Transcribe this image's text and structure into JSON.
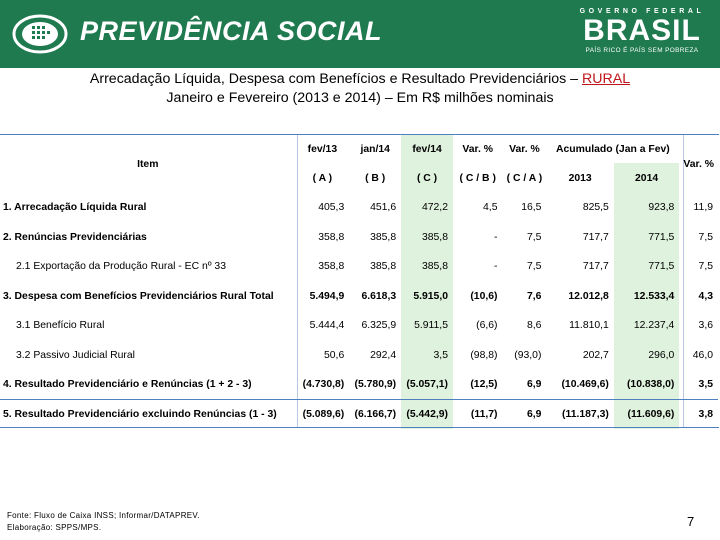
{
  "header": {
    "brand": "PREVIDÊNCIA SOCIAL",
    "gov_title": "GOVERNO FEDERAL",
    "gov_name": "BRASIL",
    "gov_slogan": "PAÍS RICO É PAÍS SEM POBREZA",
    "colors": {
      "band": "#1f7a4f",
      "accent_green": "#dff2dd",
      "rule_blue": "#4e7fbf"
    }
  },
  "title": {
    "line1_prefix": "Arrecadação Líquida, Despesa com Benefícios e Resultado Previdenciários –",
    "line1_highlight": "RURAL",
    "line2": "Janeiro e Fevereiro (2013 e 2014) – Em R$ milhões nominais"
  },
  "table": {
    "header_row1": {
      "item": "Item",
      "c1": "fev/13",
      "c2": "jan/14",
      "c3": "fev/14",
      "c4": "Var. %",
      "c5": "Var. %",
      "acum": "Acumulado (Jan a Fev)",
      "c8": "Var. %"
    },
    "header_row2": {
      "c1": "( A )",
      "c2": "( B )",
      "c3": "( C )",
      "c4": "( C / B )",
      "c5": "( C / A )",
      "c6": "2013",
      "c7": "2014"
    },
    "rows": [
      {
        "label": "1. Arrecadação Líquida Rural",
        "sub": false,
        "bold": false,
        "values": [
          "405,3",
          "451,6",
          "472,2",
          "4,5",
          "16,5",
          "825,5",
          "923,8",
          "11,9"
        ]
      },
      {
        "label": "2. Renúncias Previdenciárias",
        "sub": false,
        "bold": false,
        "values": [
          "358,8",
          "385,8",
          "385,8",
          "-",
          "7,5",
          "717,7",
          "771,5",
          "7,5"
        ]
      },
      {
        "label": "2.1 Exportação da Produção Rural - EC nº 33",
        "sub": true,
        "bold": false,
        "values": [
          "358,8",
          "385,8",
          "385,8",
          "-",
          "7,5",
          "717,7",
          "771,5",
          "7,5"
        ]
      },
      {
        "label": "3. Despesa com Benefícios Previdenciários Rural Total",
        "sub": false,
        "bold": true,
        "values": [
          "5.494,9",
          "6.618,3",
          "5.915,0",
          "(10,6)",
          "7,6",
          "12.012,8",
          "12.533,4",
          "4,3"
        ]
      },
      {
        "label": "3.1 Benefício Rural",
        "sub": true,
        "bold": false,
        "values": [
          "5.444,4",
          "6.325,9",
          "5.911,5",
          "(6,6)",
          "8,6",
          "11.810,1",
          "12.237,4",
          "3,6"
        ]
      },
      {
        "label": "3.2 Passivo Judicial Rural",
        "sub": true,
        "bold": false,
        "values": [
          "50,6",
          "292,4",
          "3,5",
          "(98,8)",
          "(93,0)",
          "202,7",
          "296,0",
          "46,0"
        ]
      },
      {
        "label": "4. Resultado Previdenciário e Renúncias (1 + 2 - 3)",
        "sub": false,
        "bold": true,
        "values": [
          "(4.730,8)",
          "(5.780,9)",
          "(5.057,1)",
          "(12,5)",
          "6,9",
          "(10.469,6)",
          "(10.838,0)",
          "3,5"
        ]
      },
      {
        "label": "5. Resultado Previdenciário excluindo Renúncias (1 - 3)",
        "sub": false,
        "bold": true,
        "values": [
          "(5.089,6)",
          "(6.166,7)",
          "(5.442,9)",
          "(11,7)",
          "6,9",
          "(11.187,3)",
          "(11.609,6)",
          "3,8"
        ]
      }
    ]
  },
  "footer": {
    "source": "Fonte: Fluxo de Caixa INSS; Informar/DATAPREV.",
    "elaboration": "Elaboração: SPPS/MPS.",
    "page": "7"
  }
}
